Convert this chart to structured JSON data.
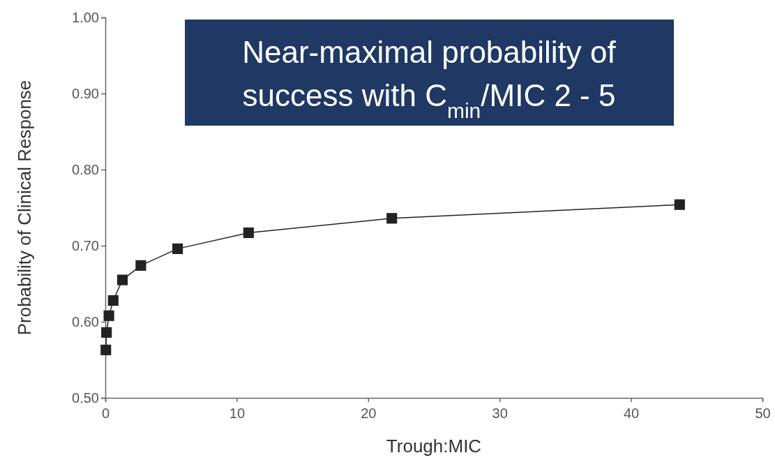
{
  "chart_data": {
    "type": "line",
    "xlabel": "Trough:MIC",
    "ylabel": "Probability of Clinical Response",
    "annotations": [
      "Near-maximal probability of success with C$_{min}$/MIC 2 - 5"
    ],
    "x": [
      0.04,
      0.09,
      0.27,
      0.6,
      1.3,
      2.7,
      5.5,
      10.9,
      21.8,
      43.7
    ],
    "series": [
      {
        "color": "#222222",
        "values": [
          0.563,
          0.586,
          0.608,
          0.628,
          0.655,
          0.674,
          0.696,
          0.717,
          0.736,
          0.754
        ]
      }
    ],
    "xlim": [
      0,
      50
    ],
    "xticks": [
      0,
      10,
      20,
      30,
      40,
      50
    ],
    "ylim": [
      0.5,
      1
    ],
    "yticks": [
      {
        "value": 0.5,
        "label": "0.50"
      },
      {
        "value": 0.6,
        "label": "0.60"
      },
      {
        "value": 0.7,
        "label": "0.70"
      },
      {
        "value": 0.8,
        "label": "0.80"
      },
      {
        "value": 0.9,
        "label": "0.90"
      },
      {
        "value": 1,
        "label": "1.00"
      }
    ],
    "marker": "square",
    "line_style": "solid",
    "grid": false
  }
}
